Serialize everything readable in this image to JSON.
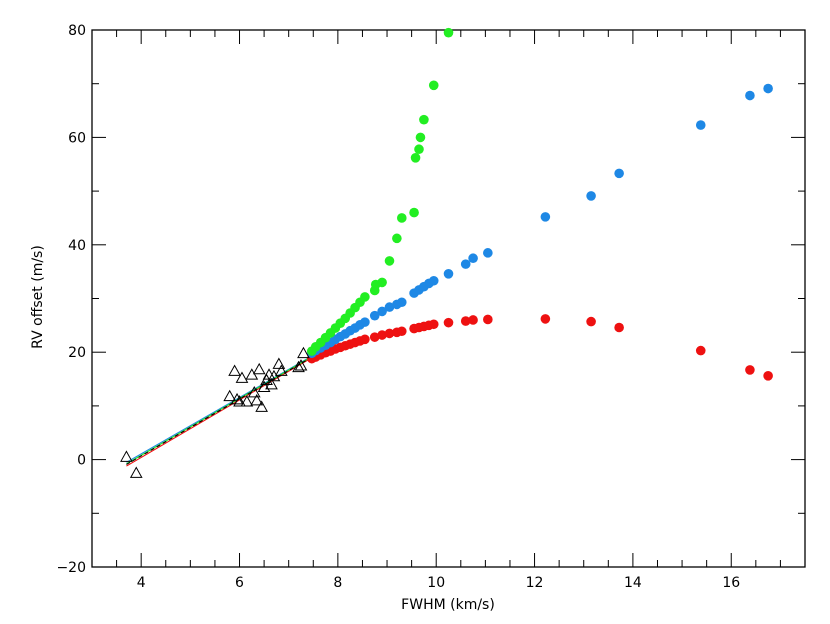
{
  "chart_data": {
    "type": "scatter",
    "title": "",
    "xlabel": "FWHM (km/s)",
    "ylabel": "RV offset (m/s)",
    "xlim": [
      3.0,
      17.5
    ],
    "ylim": [
      -20,
      80
    ],
    "x_ticks": [
      "4",
      "6",
      "8",
      "10",
      "12",
      "14",
      "16"
    ],
    "y_ticks": [
      "−20",
      "0",
      "20",
      "40",
      "60",
      "80"
    ],
    "grid": false,
    "legend": "none",
    "colors": {
      "red": "#ee1111",
      "blue": "#1e88e5",
      "green": "#22ee22",
      "black": "#000000"
    },
    "series": [
      {
        "marker": "filled-circle",
        "color": "red",
        "x": [
          7.47,
          7.55,
          7.65,
          7.75,
          7.85,
          7.95,
          8.05,
          8.15,
          8.25,
          8.35,
          8.45,
          8.55,
          8.75,
          8.9,
          9.05,
          9.2,
          9.3,
          9.55,
          9.65,
          9.75,
          9.85,
          9.95,
          10.25,
          10.6,
          10.75,
          11.05,
          12.22,
          13.15,
          13.72,
          15.38,
          16.38,
          16.75
        ],
        "y": [
          18.8,
          19.1,
          19.5,
          19.9,
          20.2,
          20.6,
          20.9,
          21.2,
          21.5,
          21.8,
          22.1,
          22.4,
          22.8,
          23.2,
          23.5,
          23.7,
          23.9,
          24.4,
          24.6,
          24.8,
          25.0,
          25.2,
          25.5,
          25.8,
          26.0,
          26.1,
          26.2,
          25.7,
          24.6,
          20.3,
          16.7,
          15.6
        ]
      },
      {
        "marker": "filled-circle",
        "color": "blue",
        "x": [
          7.47,
          7.55,
          7.65,
          7.75,
          7.85,
          7.95,
          8.05,
          8.15,
          8.25,
          8.35,
          8.45,
          8.55,
          8.75,
          8.9,
          9.05,
          9.2,
          9.3,
          9.55,
          9.65,
          9.75,
          9.85,
          9.95,
          10.25,
          10.6,
          10.75,
          11.05,
          12.22,
          13.15,
          13.72,
          15.38,
          16.38,
          16.75
        ],
        "y": [
          19.8,
          20.3,
          20.8,
          21.3,
          21.8,
          22.4,
          22.9,
          23.4,
          24.0,
          24.5,
          25.1,
          25.6,
          26.8,
          27.6,
          28.4,
          28.9,
          29.3,
          31.0,
          31.6,
          32.2,
          32.8,
          33.3,
          34.6,
          36.4,
          37.5,
          38.5,
          45.2,
          49.1,
          53.3,
          62.3,
          67.8,
          69.1
        ]
      },
      {
        "marker": "filled-circle",
        "color": "green",
        "x": [
          7.47,
          7.55,
          7.65,
          7.75,
          7.85,
          7.95,
          8.05,
          8.15,
          8.25,
          8.35,
          8.45,
          8.55,
          8.75,
          8.77,
          8.9,
          9.05,
          9.2,
          9.3,
          9.55,
          9.58,
          9.65,
          9.68,
          9.75,
          9.95,
          10.25
        ],
        "y": [
          20.2,
          21.0,
          21.8,
          22.7,
          23.6,
          24.5,
          25.4,
          26.3,
          27.3,
          28.3,
          29.3,
          30.3,
          31.5,
          32.6,
          33.0,
          37.0,
          41.2,
          45.0,
          46.0,
          56.2,
          57.8,
          60.0,
          63.3,
          69.7,
          79.5
        ]
      },
      {
        "marker": "open-triangle",
        "color": "black",
        "x": [
          3.7,
          3.9,
          5.8,
          5.9,
          5.95,
          6.0,
          6.05,
          6.15,
          6.25,
          6.3,
          6.35,
          6.4,
          6.45,
          6.5,
          6.55,
          6.6,
          6.65,
          6.7,
          6.8,
          6.85,
          7.2,
          7.25,
          7.3
        ],
        "y": [
          0.5,
          -2.5,
          11.8,
          16.5,
          11.2,
          10.8,
          15.2,
          10.8,
          15.8,
          12.5,
          11.0,
          16.8,
          9.8,
          13.5,
          14.8,
          15.8,
          14.0,
          15.5,
          17.8,
          16.5,
          17.2,
          17.5,
          19.8
        ]
      }
    ],
    "fit_lines": [
      {
        "color": "blue",
        "x": [
          3.7,
          7.4
        ],
        "y": [
          -0.5,
          18.9
        ]
      },
      {
        "color": "red",
        "x": [
          3.7,
          7.4
        ],
        "y": [
          -1.2,
          18.6
        ]
      },
      {
        "color": "green",
        "x": [
          3.7,
          7.4
        ],
        "y": [
          -0.8,
          18.8
        ]
      },
      {
        "color": "black",
        "x": [
          3.7,
          7.4
        ],
        "y": [
          -0.9,
          18.7
        ]
      }
    ]
  }
}
